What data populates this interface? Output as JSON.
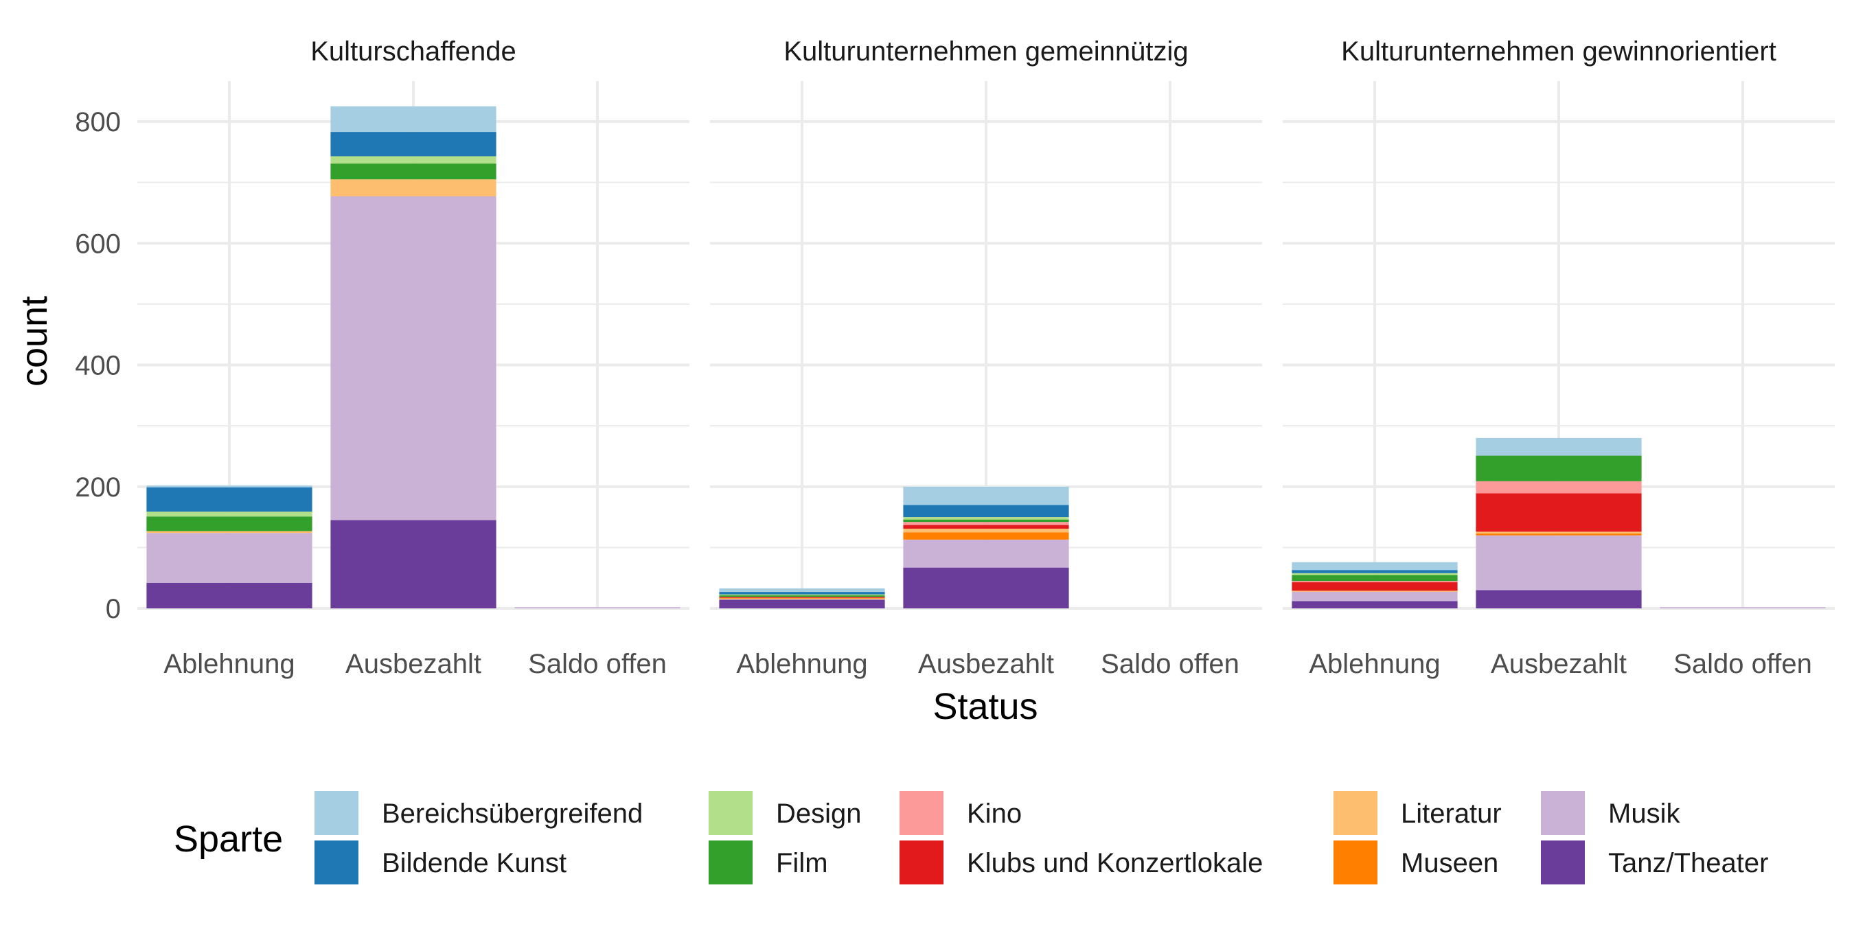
{
  "chart_data": {
    "type": "bar",
    "stacked": true,
    "facet_by": "panels",
    "xlabel": "Status",
    "ylabel": "count",
    "ylim": [
      0,
      860
    ],
    "yticks": [
      0,
      200,
      400,
      600,
      800
    ],
    "categories": [
      "Ablehnung",
      "Ausbezahlt",
      "Saldo offen"
    ],
    "grid": true,
    "legend": {
      "title": "Sparte",
      "position": "bottom",
      "entries": [
        {
          "name": "Bereichsübergreifend",
          "color": "#A6CEE3"
        },
        {
          "name": "Bildende Kunst",
          "color": "#1F78B4"
        },
        {
          "name": "Design",
          "color": "#B2DF8A"
        },
        {
          "name": "Film",
          "color": "#33A02C"
        },
        {
          "name": "Kino",
          "color": "#FB9A99"
        },
        {
          "name": "Klubs und Konzertlokale",
          "color": "#E31A1C"
        },
        {
          "name": "Literatur",
          "color": "#FDBF6F"
        },
        {
          "name": "Museen",
          "color": "#FF7F00"
        },
        {
          "name": "Musik",
          "color": "#CAB2D6"
        },
        {
          "name": "Tanz/Theater",
          "color": "#6A3D9A"
        }
      ]
    },
    "stack_order": [
      "Tanz/Theater",
      "Musik",
      "Museen",
      "Literatur",
      "Klubs und Konzertlokale",
      "Kino",
      "Film",
      "Design",
      "Bildende Kunst",
      "Bereichsübergreifend"
    ],
    "panels": [
      {
        "title": "Kulturschaffende",
        "bars": [
          {
            "category": "Ablehnung",
            "values": {
              "Tanz/Theater": 42,
              "Musik": 82,
              "Museen": 0,
              "Literatur": 3,
              "Klubs und Konzertlokale": 0,
              "Kino": 0,
              "Film": 24,
              "Design": 8,
              "Bildende Kunst": 40,
              "Bereichsübergreifend": 3
            }
          },
          {
            "category": "Ausbezahlt",
            "values": {
              "Tanz/Theater": 145,
              "Musik": 532,
              "Museen": 0,
              "Literatur": 28,
              "Klubs und Konzertlokale": 0,
              "Kino": 0,
              "Film": 26,
              "Design": 12,
              "Bildende Kunst": 40,
              "Bereichsübergreifend": 42
            }
          },
          {
            "category": "Saldo offen",
            "values": {
              "Tanz/Theater": 0,
              "Musik": 2,
              "Museen": 0,
              "Literatur": 0,
              "Klubs und Konzertlokale": 0,
              "Kino": 0,
              "Film": 0,
              "Design": 0,
              "Bildende Kunst": 0,
              "Bereichsübergreifend": 0
            }
          }
        ]
      },
      {
        "title": "Kulturunternehmen gemeinnützig",
        "bars": [
          {
            "category": "Ablehnung",
            "values": {
              "Tanz/Theater": 14,
              "Musik": 2,
              "Museen": 1,
              "Literatur": 1,
              "Klubs und Konzertlokale": 1,
              "Kino": 0,
              "Film": 3,
              "Design": 1,
              "Bildende Kunst": 4,
              "Bereichsübergreifend": 6
            }
          },
          {
            "category": "Ausbezahlt",
            "values": {
              "Tanz/Theater": 67,
              "Musik": 46,
              "Museen": 12,
              "Literatur": 6,
              "Klubs und Konzertlokale": 6,
              "Kino": 5,
              "Film": 4,
              "Design": 4,
              "Bildende Kunst": 20,
              "Bereichsübergreifend": 30
            }
          },
          {
            "category": "Saldo offen",
            "values": {
              "Tanz/Theater": 0,
              "Musik": 0,
              "Museen": 0,
              "Literatur": 0,
              "Klubs und Konzertlokale": 0,
              "Kino": 0,
              "Film": 0,
              "Design": 0,
              "Bildende Kunst": 0,
              "Bereichsübergreifend": 0
            }
          }
        ]
      },
      {
        "title": "Kulturunternehmen gewinnorientiert",
        "bars": [
          {
            "category": "Ablehnung",
            "values": {
              "Tanz/Theater": 12,
              "Musik": 16,
              "Museen": 0,
              "Literatur": 1,
              "Klubs und Konzertlokale": 14,
              "Kino": 2,
              "Film": 10,
              "Design": 3,
              "Bildende Kunst": 5,
              "Bereichsübergreifend": 13
            }
          },
          {
            "category": "Ausbezahlt",
            "values": {
              "Tanz/Theater": 30,
              "Musik": 90,
              "Museen": 3,
              "Literatur": 3,
              "Klubs und Konzertlokale": 63,
              "Kino": 20,
              "Film": 42,
              "Design": 0,
              "Bildende Kunst": 0,
              "Bereichsübergreifend": 29
            }
          },
          {
            "category": "Saldo offen",
            "values": {
              "Tanz/Theater": 0,
              "Musik": 2,
              "Museen": 0,
              "Literatur": 0,
              "Klubs und Konzertlokale": 0,
              "Kino": 0,
              "Film": 0,
              "Design": 0,
              "Bildende Kunst": 0,
              "Bereichsübergreifend": 0
            }
          }
        ]
      }
    ]
  }
}
